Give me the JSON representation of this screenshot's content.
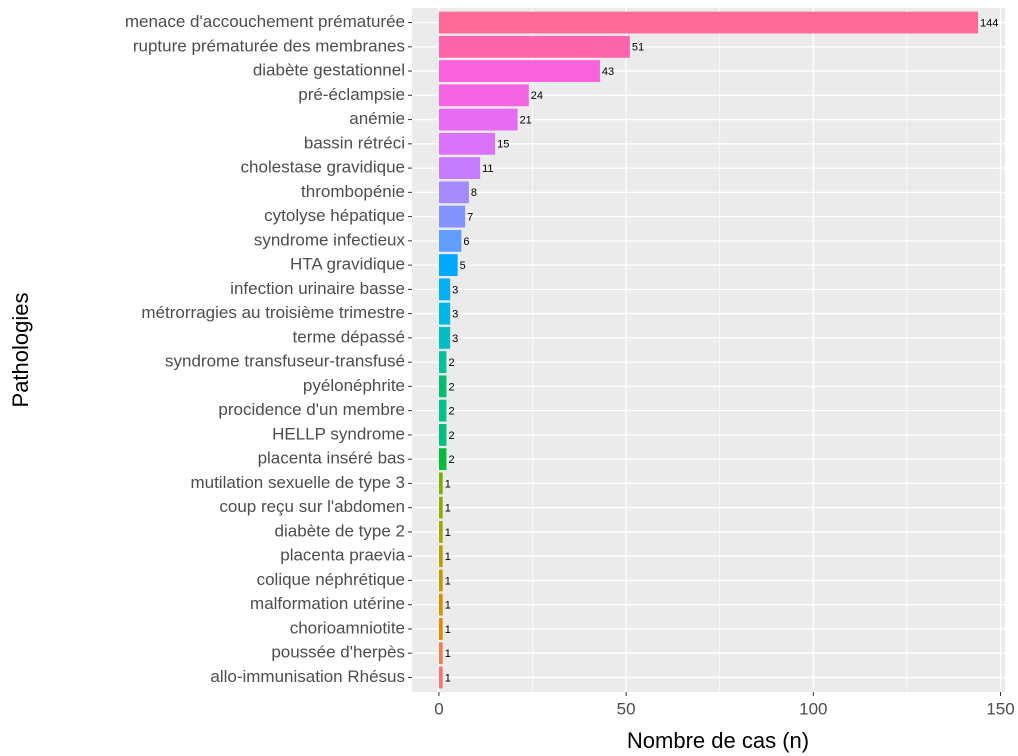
{
  "chart_data": {
    "type": "bar",
    "orientation": "horizontal",
    "x_label": "Nombre de cas (n)",
    "y_label": "Pathologies",
    "categories": [
      "menace d'accouchement prématurée",
      "rupture prématurée des membranes",
      "diabète gestationnel",
      "pré-éclampsie",
      "anémie",
      "bassin rétréci",
      "cholestase gravidique",
      "thrombopénie",
      "cytolyse hépatique",
      "syndrome infectieux",
      "HTA gravidique",
      "infection urinaire basse",
      "métrorragies au troisième trimestre",
      "terme dépassé",
      "syndrome transfuseur-transfusé",
      "pyélonéphrite",
      "procidence d'un membre",
      "HELLP syndrome",
      "placenta inséré bas",
      "mutilation sexuelle de type 3",
      "coup reçu sur l'abdomen",
      "diabète de type 2",
      "placenta praevia",
      "colique néphrétique",
      "malformation utérine",
      "chorioamniotite",
      "poussée d'herpès",
      "allo-immunisation Rhésus"
    ],
    "values": [
      144,
      51,
      43,
      24,
      21,
      15,
      11,
      8,
      7,
      6,
      5,
      3,
      3,
      3,
      2,
      2,
      2,
      2,
      2,
      1,
      1,
      1,
      1,
      1,
      1,
      1,
      1,
      1
    ],
    "colors": [
      "#FF6A98",
      "#FF65AC",
      "#F962DD",
      "#F564E3",
      "#E76BF3",
      "#DB72FB",
      "#C77CFF",
      "#A58AFF",
      "#8494FF",
      "#619CFF",
      "#00A9FF",
      "#00B0F6",
      "#00B8E7",
      "#00BFC4",
      "#00C19A",
      "#00BE70",
      "#00C08B",
      "#00BF7D",
      "#00BA38",
      "#7CAE00",
      "#8FAA00",
      "#A3A500",
      "#B79F00",
      "#C49A00",
      "#D89000",
      "#E38900",
      "#F07E4D",
      "#F8766D"
    ],
    "xlim": [
      -7.2,
      151.2
    ],
    "xticks": [
      0,
      50,
      100,
      150
    ],
    "xminor": [
      25,
      75,
      125
    ],
    "grid": true
  }
}
